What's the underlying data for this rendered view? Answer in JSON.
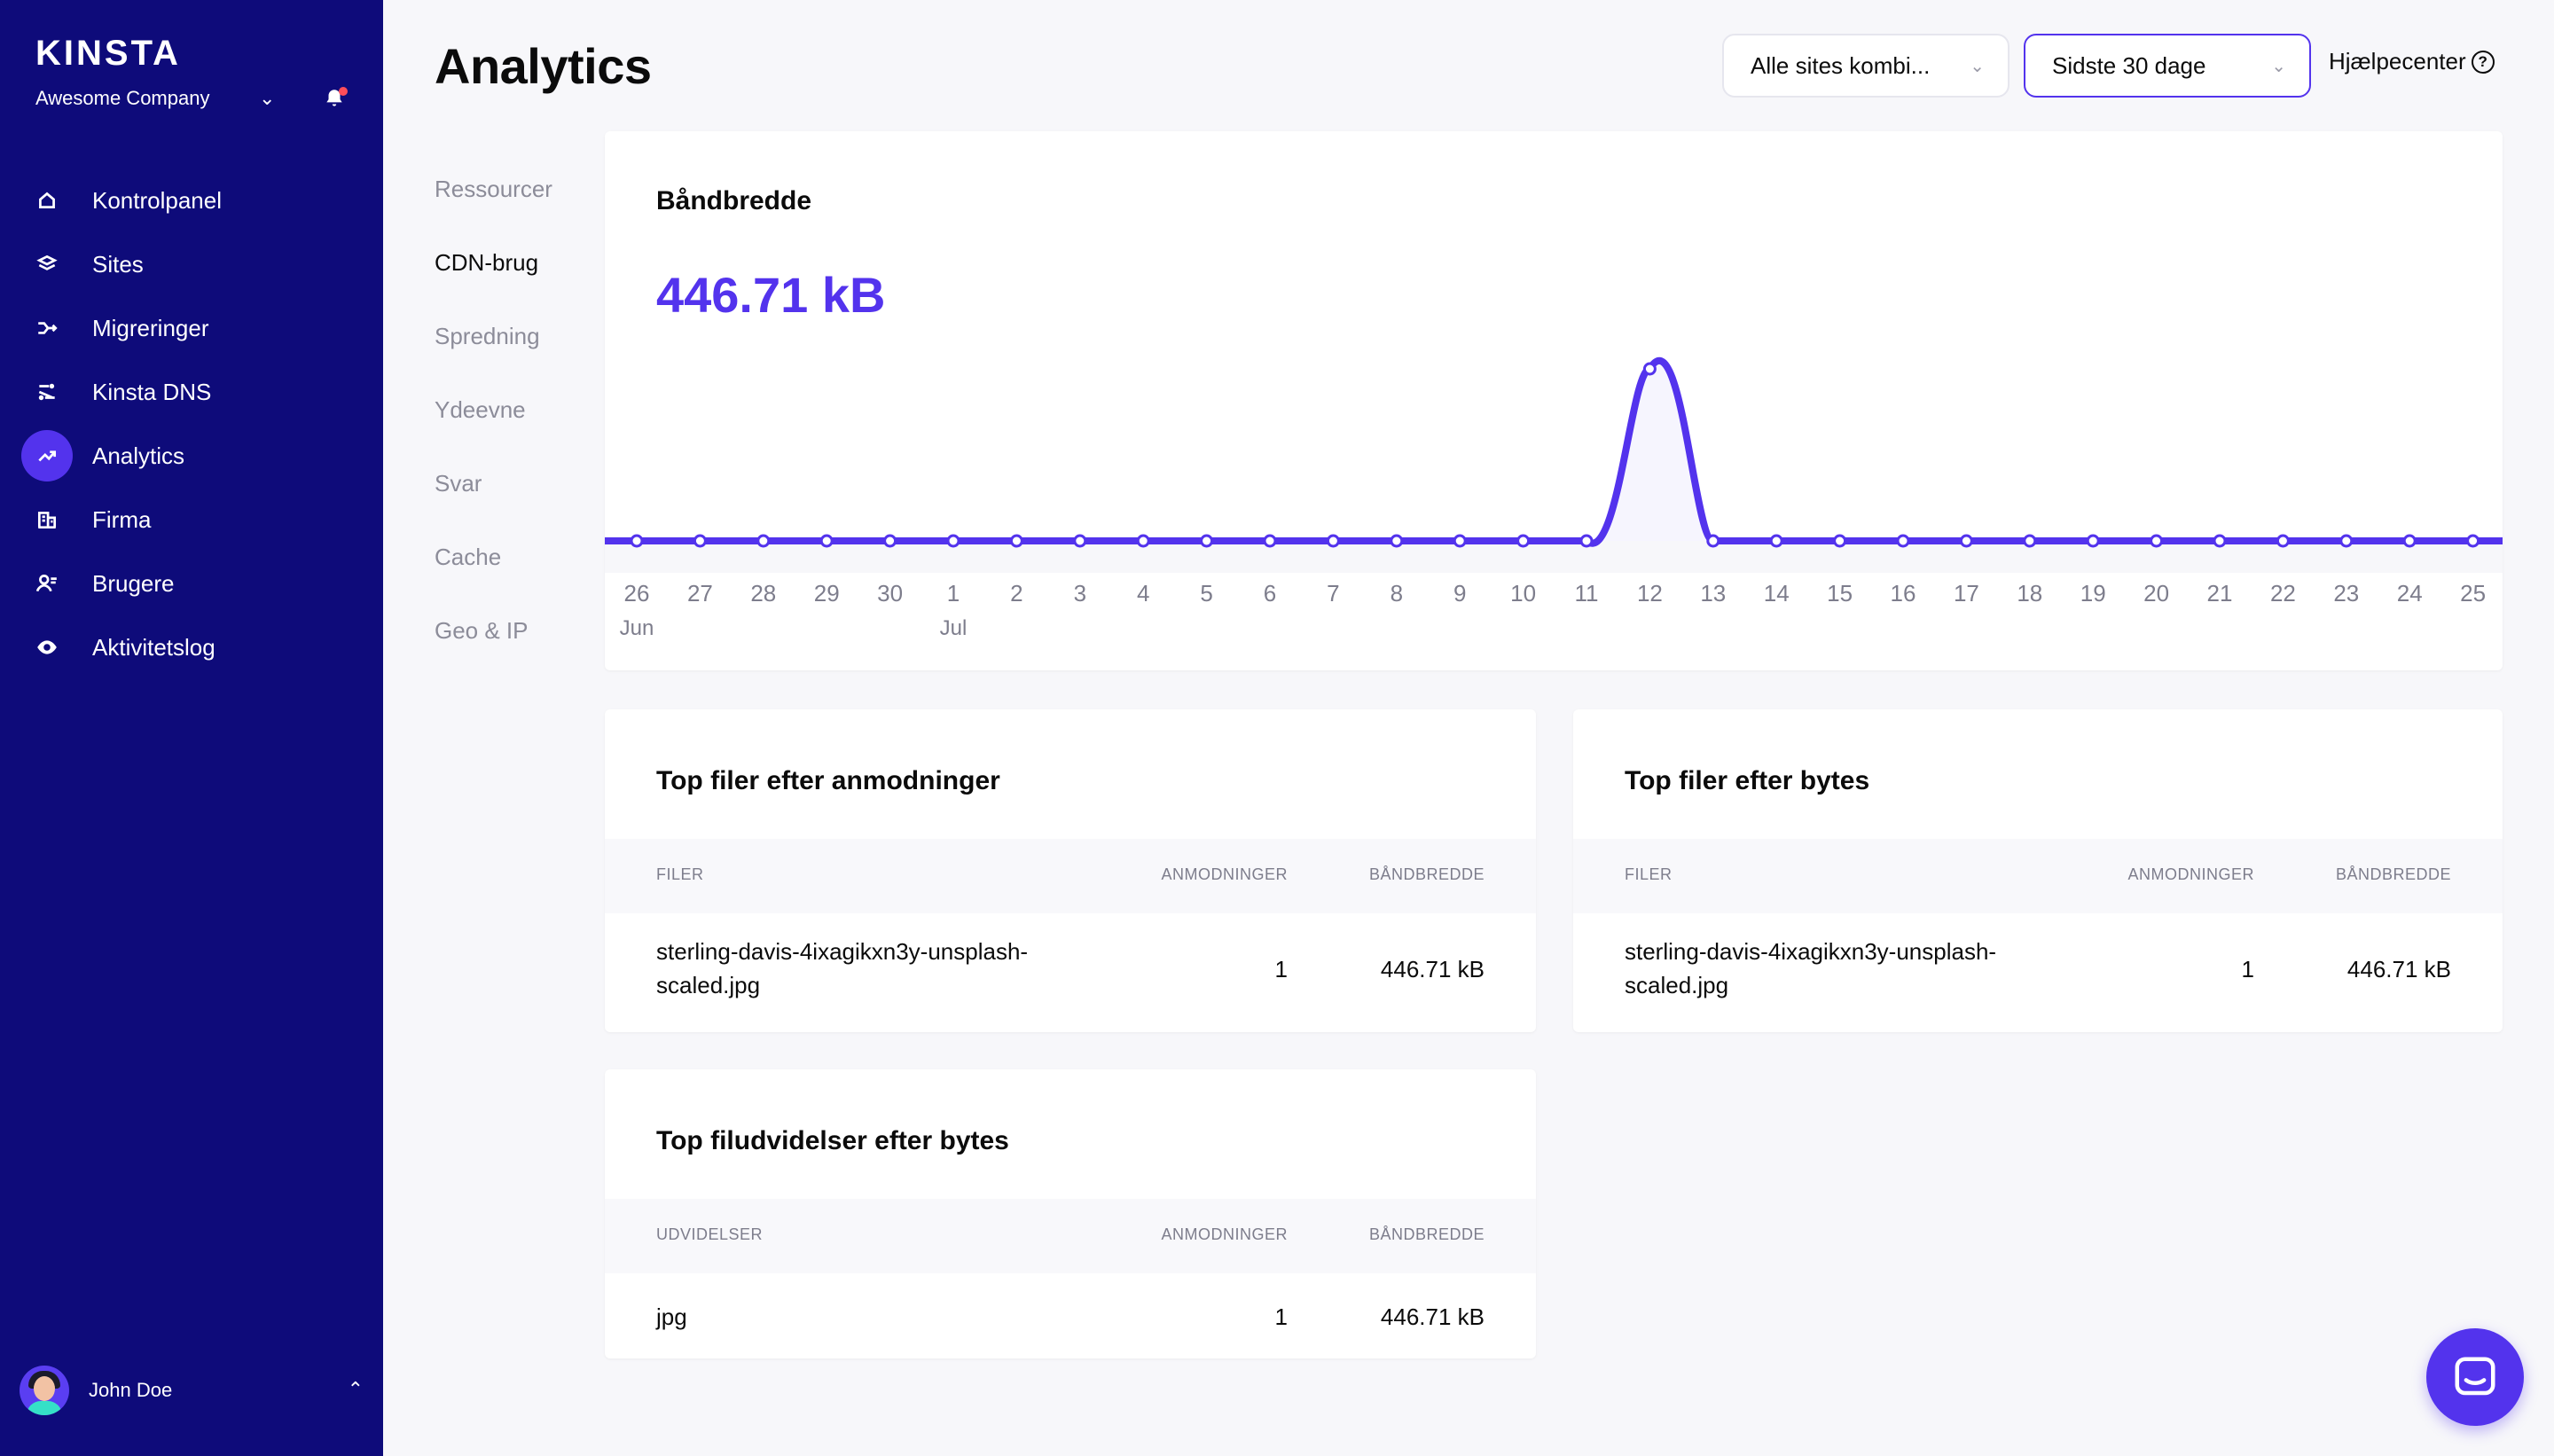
{
  "brand": {
    "logo": "KINSTA",
    "company": "Awesome Company",
    "accent": "#5333ed",
    "sidebar_bg": "#0e0b7a"
  },
  "sidebar": {
    "items": [
      {
        "label": "Kontrolpanel",
        "icon": "home-icon"
      },
      {
        "label": "Sites",
        "icon": "layers-icon"
      },
      {
        "label": "Migreringer",
        "icon": "migrate-icon"
      },
      {
        "label": "Kinsta DNS",
        "icon": "dns-icon"
      },
      {
        "label": "Analytics",
        "icon": "trend-icon",
        "active": true
      },
      {
        "label": "Firma",
        "icon": "building-icon"
      },
      {
        "label": "Brugere",
        "icon": "users-icon"
      },
      {
        "label": "Aktivitetslog",
        "icon": "eye-icon"
      }
    ],
    "user": "John Doe"
  },
  "header": {
    "title": "Analytics",
    "site_select": "Alle sites kombi...",
    "range_select": "Sidste 30 dage",
    "help": "Hjælpecenter"
  },
  "subnav": [
    "Ressourcer",
    "CDN-brug",
    "Spredning",
    "Ydeevne",
    "Svar",
    "Cache",
    "Geo & IP"
  ],
  "bandwidth": {
    "title": "Båndbredde",
    "total": "446.71 kB"
  },
  "chart_data": {
    "type": "line",
    "title": "Båndbredde",
    "x": [
      "26",
      "27",
      "28",
      "29",
      "30",
      "1",
      "2",
      "3",
      "4",
      "5",
      "6",
      "7",
      "8",
      "9",
      "10",
      "11",
      "12",
      "13",
      "14",
      "15",
      "16",
      "17",
      "18",
      "19",
      "20",
      "21",
      "22",
      "23",
      "24",
      "25"
    ],
    "month_labels": {
      "0": "Jun",
      "5": "Jul"
    },
    "series": [
      {
        "values": [
          0,
          0,
          0,
          0,
          0,
          0,
          0,
          0,
          0,
          0,
          0,
          0,
          0,
          0,
          0,
          0,
          446.71,
          0,
          0,
          0,
          0,
          0,
          0,
          0,
          0,
          0,
          0,
          0,
          0,
          0
        ]
      }
    ],
    "color": "#5333ed"
  },
  "tables": {
    "top_requests": {
      "title": "Top filer efter anmodninger",
      "headers": [
        "FILER",
        "ANMODNINGER",
        "BÅNDBREDDE"
      ],
      "rows": [
        {
          "file_line1": "sterling-davis-4ixagikxn3y-unsplash-",
          "file_line2": "scaled.jpg",
          "requests": "1",
          "bandwidth": "446.71 kB"
        }
      ]
    },
    "top_bytes": {
      "title": "Top filer efter bytes",
      "headers": [
        "FILER",
        "ANMODNINGER",
        "BÅNDBREDDE"
      ],
      "rows": [
        {
          "file_line1": "sterling-davis-4ixagikxn3y-unsplash-",
          "file_line2": "scaled.jpg",
          "requests": "1",
          "bandwidth": "446.71 kB"
        }
      ]
    },
    "top_ext": {
      "title": "Top filudvidelser efter bytes",
      "headers": [
        "UDVIDELSER",
        "ANMODNINGER",
        "BÅNDBREDDE"
      ],
      "rows": [
        {
          "ext": "jpg",
          "requests": "1",
          "bandwidth": "446.71 kB"
        }
      ]
    }
  }
}
